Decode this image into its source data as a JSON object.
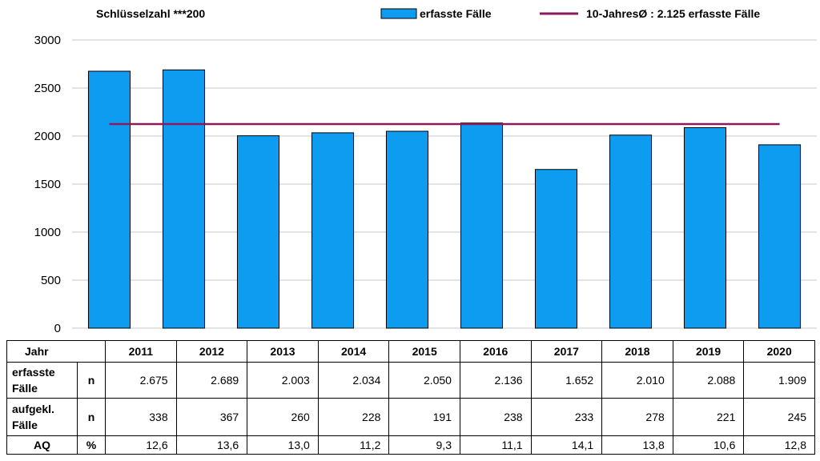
{
  "chart_data": {
    "type": "bar",
    "title": "Schlüsselzahl ***200",
    "categories": [
      "2011",
      "2012",
      "2013",
      "2014",
      "2015",
      "2016",
      "2017",
      "2018",
      "2019",
      "2020"
    ],
    "series": [
      {
        "name": "erfasste Fälle",
        "values": [
          2675,
          2689,
          2003,
          2034,
          2050,
          2136,
          1652,
          2010,
          2088,
          1909
        ],
        "color": "#0e9cf0"
      }
    ],
    "reference_line": {
      "name": "10-JahresØ : 2.125 erfasste Fälle",
      "value": 2125,
      "color": "#8b1a5c"
    },
    "y_ticks": [
      "0",
      "500",
      "1000",
      "1500",
      "2000",
      "2500",
      "3000"
    ],
    "ylim": [
      0,
      3000
    ],
    "grid": true,
    "legend_position": "top-right"
  },
  "table": {
    "year_label": "Jahr",
    "years": [
      "2011",
      "2012",
      "2013",
      "2014",
      "2015",
      "2016",
      "2017",
      "2018",
      "2019",
      "2020"
    ],
    "rows": [
      {
        "label_line1": "erfasste",
        "label_line2": "Fälle",
        "unit": "n",
        "values": [
          "2.675",
          "2.689",
          "2.003",
          "2.034",
          "2.050",
          "2.136",
          "1.652",
          "2.010",
          "2.088",
          "1.909"
        ]
      },
      {
        "label_line1": "aufgekl.",
        "label_line2": "Fälle",
        "unit": "n",
        "values": [
          "338",
          "367",
          "260",
          "228",
          "191",
          "238",
          "233",
          "278",
          "221",
          "245"
        ]
      },
      {
        "label_line1": "AQ",
        "label_line2": "",
        "unit": "%",
        "values": [
          "12,6",
          "13,6",
          "13,0",
          "11,2",
          "9,3",
          "11,1",
          "14,1",
          "13,8",
          "10,6",
          "12,8"
        ]
      }
    ]
  }
}
